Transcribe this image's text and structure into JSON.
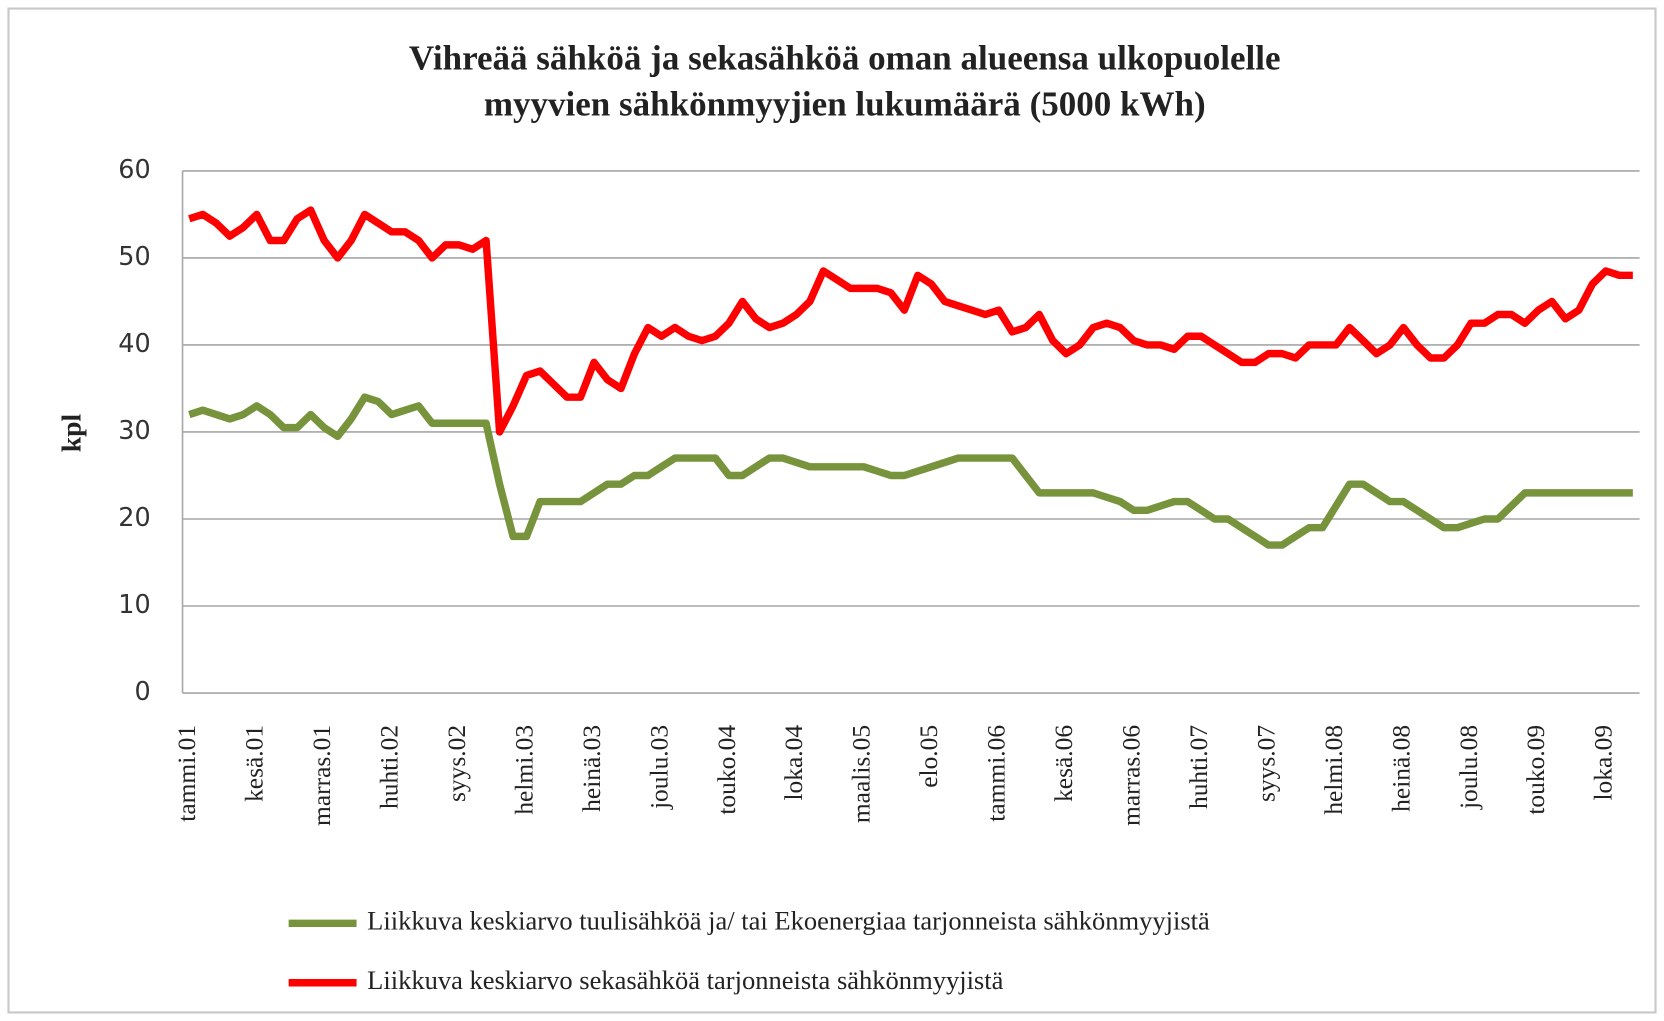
{
  "chart_data": {
    "type": "line",
    "title": [
      "Vihreää sähköä ja sekasähköä oman alueensa ulkopuolelle",
      "myyvien sähkönmyyjien lukumäärä (5000 kWh)"
    ],
    "y_label": "kpl",
    "categories": [
      "tammi.01",
      null,
      null,
      null,
      null,
      "kesä.01",
      null,
      null,
      null,
      null,
      "marras.01",
      null,
      null,
      null,
      null,
      "huhti.02",
      null,
      null,
      null,
      null,
      "syys.02",
      null,
      null,
      null,
      null,
      "helmi.03",
      null,
      null,
      null,
      null,
      "heinä.03",
      null,
      null,
      null,
      null,
      "joulu.03",
      null,
      null,
      null,
      null,
      "touko.04",
      null,
      null,
      null,
      null,
      "loka.04",
      null,
      null,
      null,
      null,
      "maalis.05",
      null,
      null,
      null,
      null,
      "elo.05",
      null,
      null,
      null,
      null,
      "tammi.06",
      null,
      null,
      null,
      null,
      "kesä.06",
      null,
      null,
      null,
      null,
      "marras.06",
      null,
      null,
      null,
      null,
      "huhti.07",
      null,
      null,
      null,
      null,
      "syys.07",
      null,
      null,
      null,
      null,
      "helmi.08",
      null,
      null,
      null,
      null,
      "heinä.08",
      null,
      null,
      null,
      null,
      "joulu.08",
      null,
      null,
      null,
      null,
      "touko.09",
      null,
      null,
      null,
      null,
      "loka.09",
      null,
      null
    ],
    "series": [
      {
        "name": "Liikkuva keskiarvo tuulisähköä ja/ tai Ekoenergiaa tarjonneista sähkönmyyjistä",
        "color": "#77933c",
        "values": [
          32,
          32.5,
          32,
          31.5,
          32,
          33,
          32,
          30.5,
          30.5,
          32,
          30.5,
          29.5,
          31.5,
          34,
          33.5,
          32,
          32.5,
          33,
          31,
          31,
          31,
          31,
          31,
          24,
          18,
          18,
          22,
          22,
          22,
          22,
          23,
          24,
          24,
          25,
          25,
          26,
          27,
          27,
          27,
          27,
          25,
          25,
          26,
          27,
          27,
          26.5,
          26,
          26,
          26,
          26,
          26,
          25.5,
          25,
          25,
          25.5,
          26,
          26.5,
          27,
          27,
          27,
          27,
          27,
          25,
          23,
          23,
          23,
          23,
          23,
          22.5,
          22,
          21,
          21,
          21.5,
          22,
          22,
          21,
          20,
          20,
          19,
          18,
          17,
          17,
          18,
          19,
          19,
          21.5,
          24,
          24,
          23,
          22,
          22,
          21,
          20,
          19,
          19,
          19.5,
          20,
          20,
          21.5,
          23,
          23,
          23,
          23,
          23,
          23,
          23,
          23,
          23
        ]
      },
      {
        "name": "Liikkuva keskiarvo sekasähköä tarjonneista sähkönmyyjistä",
        "color": "#ff0000",
        "values": [
          54.5,
          55,
          54,
          52.5,
          53.5,
          55,
          52,
          52,
          54.5,
          55.5,
          52,
          50,
          52,
          55,
          54,
          53,
          53,
          52,
          50,
          51.5,
          51.5,
          51,
          52,
          30,
          33,
          36.5,
          37,
          35.5,
          34,
          34,
          38,
          36,
          35,
          39,
          42,
          41,
          42,
          41,
          40.5,
          41,
          42.5,
          45,
          43,
          42,
          42.5,
          43.5,
          45,
          48.5,
          47.5,
          46.5,
          46.5,
          46.5,
          46,
          44,
          48,
          47,
          45,
          44.5,
          44,
          43.5,
          44,
          41.5,
          42,
          43.5,
          40.5,
          39,
          40,
          42,
          42.5,
          42,
          40.5,
          40,
          40,
          39.5,
          41,
          41,
          40,
          39,
          38,
          38,
          39,
          39,
          38.5,
          40,
          40,
          40,
          42,
          40.5,
          39,
          40,
          42,
          40,
          38.5,
          38.5,
          40,
          42.5,
          42.5,
          43.5,
          43.5,
          42.5,
          44,
          45,
          43,
          44,
          47,
          48.5,
          48,
          48
        ]
      }
    ],
    "ylim": [
      0,
      60
    ],
    "yticks": [
      0,
      10,
      20,
      30,
      40,
      50,
      60
    ],
    "grid": true
  }
}
